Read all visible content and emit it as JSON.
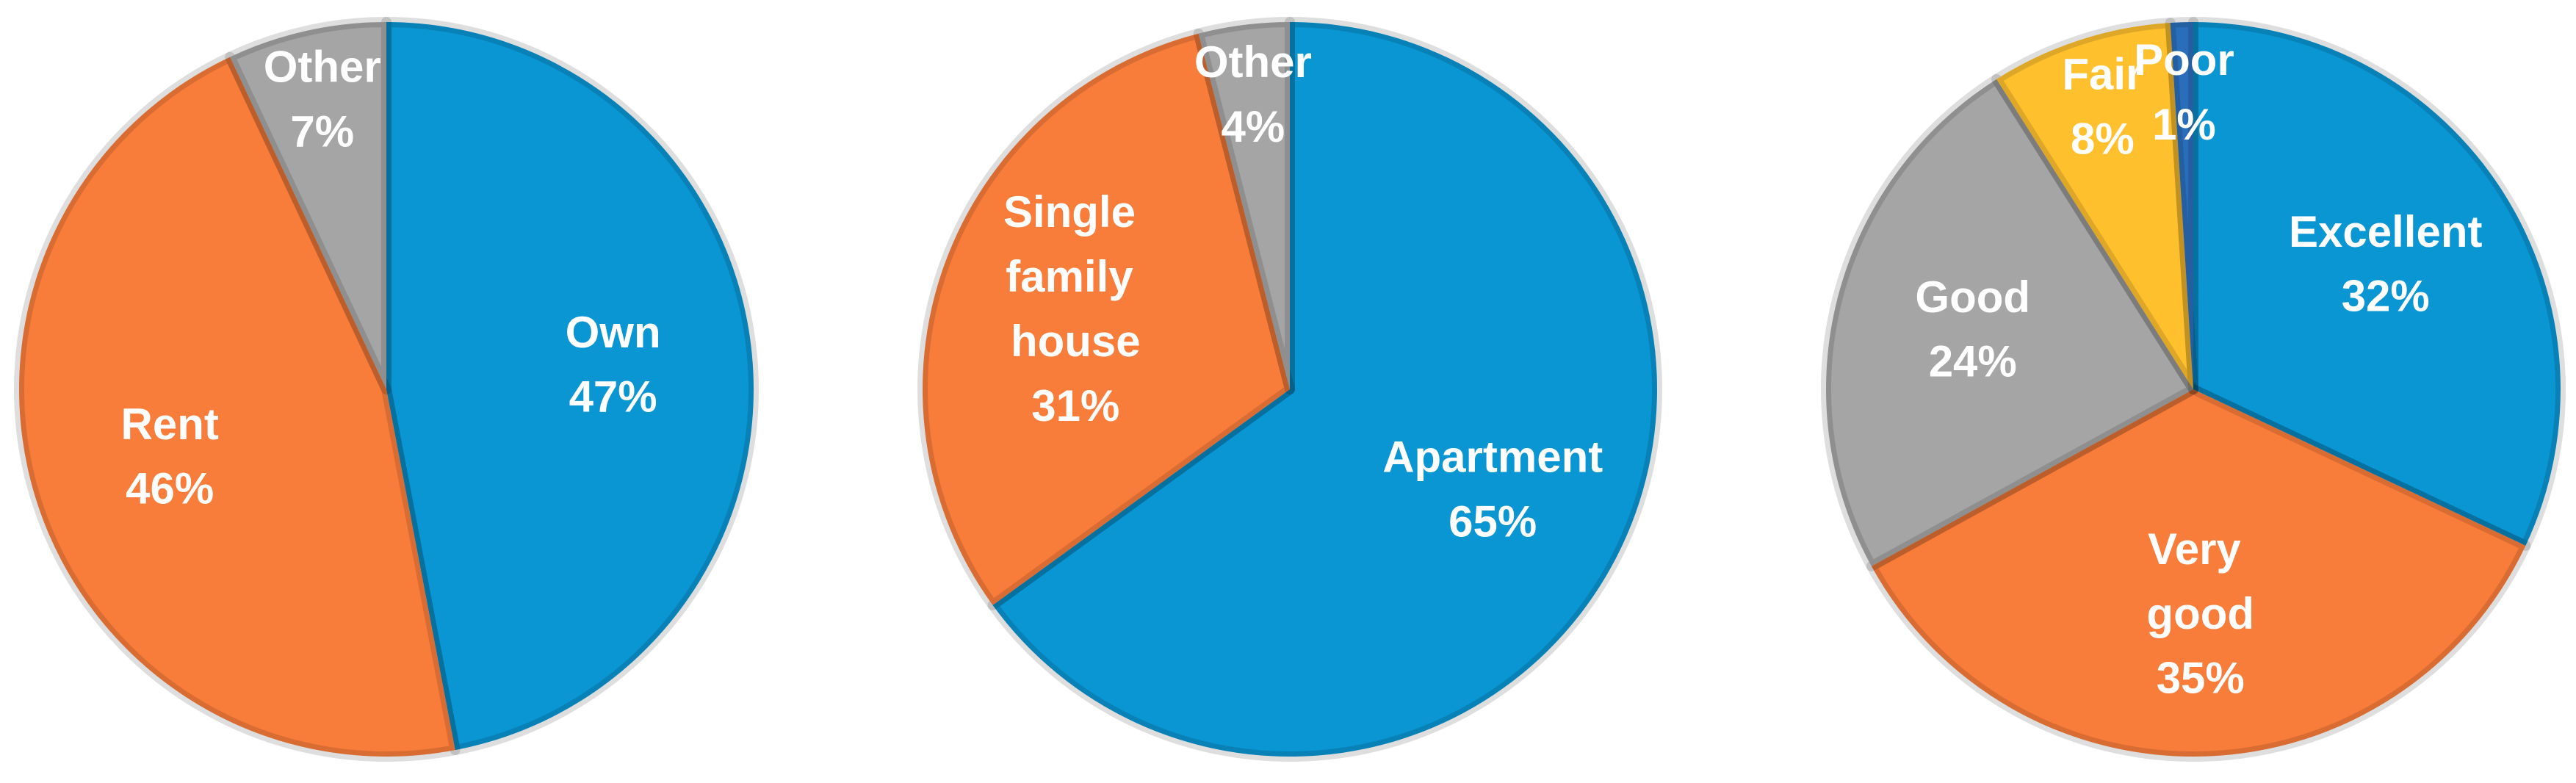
{
  "chart_data": [
    {
      "type": "pie",
      "categories": [
        "Own",
        "Rent",
        "Other"
      ],
      "values": [
        47,
        46,
        7
      ],
      "value_labels": [
        "47%",
        "46%",
        "7%"
      ],
      "colors": [
        "#0a95d3",
        "#f87c3a",
        "#a5a5a5"
      ]
    },
    {
      "type": "pie",
      "categories": [
        "Apartment",
        "Single family house",
        "Other"
      ],
      "values": [
        65,
        31,
        4
      ],
      "value_labels": [
        "65%",
        "31%",
        "4%"
      ],
      "colors": [
        "#0a95d3",
        "#f87c3a",
        "#a5a5a5"
      ]
    },
    {
      "type": "pie",
      "categories": [
        "Excellent",
        "Very good",
        "Good",
        "Fair",
        "Poor"
      ],
      "values": [
        32,
        35,
        24,
        8,
        1
      ],
      "value_labels": [
        "32%",
        "35%",
        "24%",
        "8%",
        "1%"
      ],
      "colors": [
        "#0a95d3",
        "#f87c3a",
        "#a5a5a5",
        "#ffc02e",
        "#2a6ebb"
      ]
    }
  ]
}
